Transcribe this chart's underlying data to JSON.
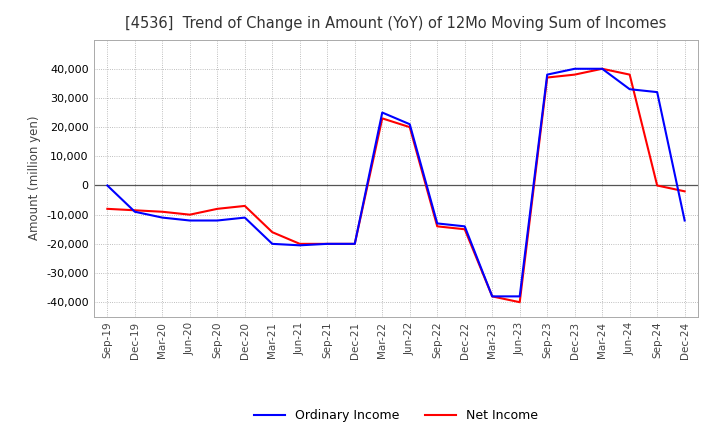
{
  "title": "[4536]  Trend of Change in Amount (YoY) of 12Mo Moving Sum of Incomes",
  "ylabel": "Amount (million yen)",
  "background_color": "#ffffff",
  "grid_color": "#aaaaaa",
  "ylim": [
    -45000,
    50000
  ],
  "yticks": [
    -40000,
    -30000,
    -20000,
    -10000,
    0,
    10000,
    20000,
    30000,
    40000
  ],
  "dates": [
    "Sep-19",
    "Dec-19",
    "Mar-20",
    "Jun-20",
    "Sep-20",
    "Dec-20",
    "Mar-21",
    "Jun-21",
    "Sep-21",
    "Dec-21",
    "Mar-22",
    "Jun-22",
    "Sep-22",
    "Dec-22",
    "Mar-23",
    "Jun-23",
    "Sep-23",
    "Dec-23",
    "Mar-24",
    "Jun-24",
    "Sep-24",
    "Dec-24"
  ],
  "ordinary_income": [
    0,
    -9000,
    -11000,
    -12000,
    -12000,
    -11000,
    -20000,
    -20500,
    -20000,
    -20000,
    25000,
    21000,
    -13000,
    -14000,
    -38000,
    -38000,
    38000,
    40000,
    40000,
    33000,
    32000,
    -12000
  ],
  "net_income": [
    -8000,
    -8500,
    -9000,
    -10000,
    -8000,
    -7000,
    -16000,
    -20000,
    -20000,
    -20000,
    23000,
    20000,
    -14000,
    -15000,
    -38000,
    -40000,
    37000,
    38000,
    40000,
    38000,
    0,
    -2000
  ],
  "ordinary_color": "#0000ff",
  "net_color": "#ff0000",
  "line_width": 1.5
}
